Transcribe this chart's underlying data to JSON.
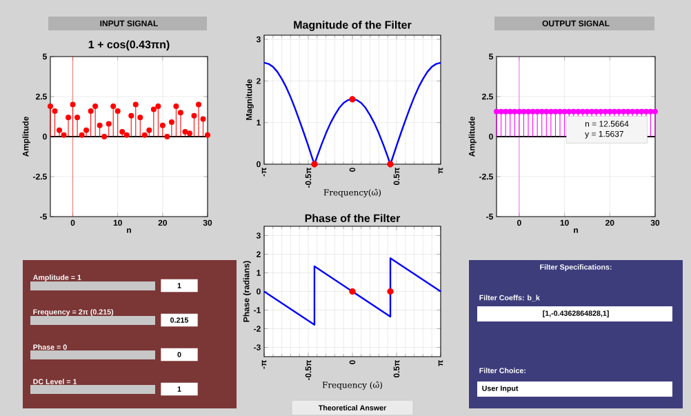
{
  "chart_data": [
    {
      "type": "lollipop",
      "title": "INPUT SIGNAL",
      "subtitle": "1 + cos(0.43πn)",
      "xlabel": "n",
      "ylabel": "Amplitude",
      "x": [
        -5,
        -4,
        -3,
        -2,
        -1,
        0,
        1,
        2,
        3,
        4,
        5,
        6,
        7,
        8,
        9,
        10,
        11,
        12,
        13,
        14,
        15,
        16,
        17,
        18,
        19,
        20,
        21,
        22,
        23,
        24,
        25,
        26,
        27,
        28,
        29,
        30
      ],
      "values": [
        1.9,
        1.6,
        0.4,
        0.1,
        1.2,
        2.0,
        1.2,
        0.1,
        0.4,
        1.6,
        1.9,
        0.7,
        0.0,
        0.8,
        1.9,
        1.6,
        0.3,
        0.1,
        1.3,
        2.0,
        1.2,
        0.1,
        0.4,
        1.7,
        1.9,
        0.7,
        0.0,
        0.9,
        1.9,
        1.5,
        0.3,
        0.2,
        1.3,
        2.0,
        1.1,
        0.1
      ],
      "color": "#ff0000",
      "marker": "circle",
      "xlim": [
        -5,
        30
      ],
      "xticks": [
        0,
        10,
        20,
        30
      ],
      "ylim": [
        -5,
        5
      ],
      "yticks": [
        -5,
        -2.5,
        0,
        2.5,
        5
      ],
      "grid": true,
      "ref_lines": [
        {
          "axis": "x",
          "value": 0,
          "color": "#ff0000"
        },
        {
          "axis": "y",
          "value": 0,
          "color": "#000000"
        }
      ]
    },
    {
      "type": "line",
      "title": "Magnitude of the Filter",
      "xlabel": "Frequency(ω̂)",
      "ylabel": "Magnitude",
      "series": [
        {
          "color": "#0000ff",
          "x": [
            -3.142,
            -2.985,
            -2.827,
            -2.67,
            -2.513,
            -2.356,
            -2.199,
            -2.042,
            -1.885,
            -1.728,
            -1.571,
            -1.414,
            -1.351,
            -1.257,
            -1.1,
            -0.942,
            -0.785,
            -0.628,
            -0.471,
            -0.314,
            -0.157,
            0,
            0.157,
            0.314,
            0.471,
            0.628,
            0.785,
            0.942,
            1.1,
            1.257,
            1.351,
            1.414,
            1.571,
            1.728,
            1.885,
            2.042,
            2.199,
            2.356,
            2.513,
            2.67,
            2.827,
            2.985,
            3.142
          ],
          "values": [
            2.44,
            2.41,
            2.34,
            2.22,
            2.05,
            1.85,
            1.61,
            1.34,
            1.05,
            0.75,
            0.44,
            0.12,
            0,
            0.18,
            0.47,
            0.74,
            0.98,
            1.18,
            1.35,
            1.47,
            1.54,
            1.56,
            1.54,
            1.47,
            1.35,
            1.18,
            0.98,
            0.74,
            0.47,
            0.18,
            0,
            0.12,
            0.44,
            0.75,
            1.05,
            1.34,
            1.61,
            1.85,
            2.05,
            2.22,
            2.34,
            2.41,
            2.44
          ]
        },
        {
          "type": "scatter",
          "color": "#ff0000",
          "x": [
            -1.351,
            0,
            1.351
          ],
          "values": [
            0,
            1.56,
            0
          ]
        }
      ],
      "xlim": [
        -3.142,
        3.142
      ],
      "xticks": [
        {
          "value": -3.142,
          "label": "-π"
        },
        {
          "value": -1.571,
          "label": "-0.5π"
        },
        0,
        {
          "value": 1.571,
          "label": "0.5π"
        },
        {
          "value": 3.142,
          "label": "π"
        }
      ],
      "ylim": [
        0,
        3.1
      ],
      "yticks": [
        0,
        1,
        2,
        3
      ],
      "grid": true
    },
    {
      "type": "lollipop",
      "title": "OUTPUT SIGNAL",
      "xlabel": "n",
      "ylabel": "Amplitude",
      "x": [
        -5,
        -4,
        -3,
        -2,
        -1,
        0,
        1,
        2,
        3,
        4,
        5,
        6,
        7,
        8,
        9,
        10,
        11,
        12,
        13,
        14,
        15,
        16,
        17,
        18,
        19,
        20,
        21,
        22,
        23,
        24,
        25,
        26,
        27,
        28,
        29,
        30
      ],
      "values": [
        1.56,
        1.56,
        1.56,
        1.56,
        1.56,
        1.56,
        1.56,
        1.56,
        1.56,
        1.56,
        1.56,
        1.56,
        1.56,
        1.56,
        1.56,
        1.56,
        1.56,
        1.56,
        1.56,
        1.56,
        1.56,
        1.56,
        1.56,
        1.56,
        1.56,
        1.56,
        1.56,
        1.56,
        1.56,
        1.56,
        1.56,
        1.56,
        1.56,
        1.56,
        1.56,
        1.56
      ],
      "color": "#ff00ff",
      "marker": "circle",
      "xlim": [
        -5,
        30
      ],
      "xticks": [
        0,
        10,
        20,
        30
      ],
      "ylim": [
        -5,
        5
      ],
      "yticks": [
        -5,
        -2.5,
        0,
        2.5,
        5
      ],
      "grid": true,
      "ref_lines": [
        {
          "axis": "x",
          "value": 0,
          "color": "#ff00ff"
        },
        {
          "axis": "y",
          "value": 0,
          "color": "#000000"
        }
      ],
      "annotations": [
        "n = 12.5664",
        "y = 1.5637"
      ]
    },
    {
      "type": "line",
      "title": "Phase of the Filter",
      "xlabel": "Frequency (ω̂)",
      "ylabel": "Phase (radians)",
      "series": [
        {
          "color": "#0000ff",
          "x": [
            -3.142,
            -1.351,
            -1.351,
            1.351,
            1.351,
            3.142
          ],
          "values": [
            0,
            -1.79,
            1.35,
            -1.35,
            1.79,
            0
          ]
        },
        {
          "type": "scatter",
          "color": "#ff0000",
          "x": [
            0,
            1.351
          ],
          "values": [
            0,
            0
          ]
        }
      ],
      "xlim": [
        -3.142,
        3.142
      ],
      "xticks": [
        {
          "value": -3.142,
          "label": "-π"
        },
        {
          "value": -1.571,
          "label": "-0.5π"
        },
        0,
        {
          "value": 1.571,
          "label": "0.5π"
        },
        {
          "value": 3.142,
          "label": "π"
        }
      ],
      "ylim": [
        -3.5,
        3.5
      ],
      "yticks": [
        -3,
        -2,
        -1,
        0,
        1,
        2,
        3
      ],
      "grid": true,
      "annotations": [
        "Theoretical Answer"
      ]
    },
    {
      "type": "other",
      "annotations": [
        "Amplitude = 1",
        "1",
        "Frequency = 2π (0.215)",
        "0.215",
        "Phase = 0",
        "0",
        "DC Level = 1",
        "1"
      ]
    },
    {
      "type": "other",
      "title": "Filter Specifications:",
      "annotations": [
        "Filter Coeffs: b_k",
        "[1,-0.4362864828,1]",
        "Filter Choice:",
        "User Input"
      ]
    }
  ]
}
